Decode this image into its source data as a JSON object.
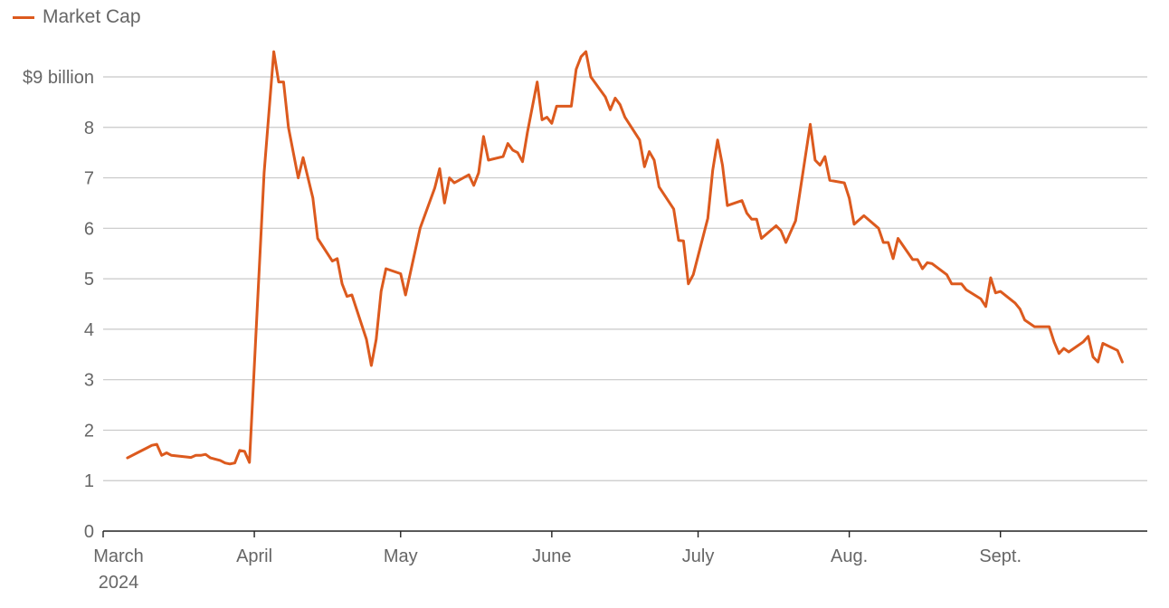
{
  "chart_data": {
    "type": "line",
    "title": "",
    "xlabel": "",
    "ylabel": "",
    "ylim": [
      0,
      9
    ],
    "grid": true,
    "legend_placement": "top-left",
    "accent_color": "#dc5a1e",
    "y_ticks": [
      {
        "value": 9,
        "label": "$9 billion"
      },
      {
        "value": 8,
        "label": "8"
      },
      {
        "value": 7,
        "label": "7"
      },
      {
        "value": 6,
        "label": "6"
      },
      {
        "value": 5,
        "label": "5"
      },
      {
        "value": 4,
        "label": "4"
      },
      {
        "value": 3,
        "label": "3"
      },
      {
        "value": 2,
        "label": "2"
      },
      {
        "value": 1,
        "label": "1"
      },
      {
        "value": 0,
        "label": "0"
      }
    ],
    "x_ticks": [
      {
        "date": "2024-03-01",
        "label": "March",
        "sublabel": "2024"
      },
      {
        "date": "2024-04-01",
        "label": "April"
      },
      {
        "date": "2024-05-01",
        "label": "May"
      },
      {
        "date": "2024-06-01",
        "label": "June"
      },
      {
        "date": "2024-07-01",
        "label": "July"
      },
      {
        "date": "2024-08-01",
        "label": "Aug."
      },
      {
        "date": "2024-09-01",
        "label": "Sept."
      }
    ],
    "x_range": [
      "2024-03-01",
      "2024-09-30"
    ],
    "series": [
      {
        "name": "Market Cap",
        "color": "#dc5a1e",
        "points": [
          [
            "2024-03-06",
            1.45
          ],
          [
            "2024-03-08",
            1.55
          ],
          [
            "2024-03-10",
            1.65
          ],
          [
            "2024-03-11",
            1.7
          ],
          [
            "2024-03-12",
            1.72
          ],
          [
            "2024-03-13",
            1.5
          ],
          [
            "2024-03-14",
            1.55
          ],
          [
            "2024-03-15",
            1.5
          ],
          [
            "2024-03-18",
            1.47
          ],
          [
            "2024-03-19",
            1.46
          ],
          [
            "2024-03-20",
            1.5
          ],
          [
            "2024-03-21",
            1.5
          ],
          [
            "2024-03-22",
            1.52
          ],
          [
            "2024-03-23",
            1.45
          ],
          [
            "2024-03-25",
            1.4
          ],
          [
            "2024-03-26",
            1.35
          ],
          [
            "2024-03-27",
            1.33
          ],
          [
            "2024-03-28",
            1.35
          ],
          [
            "2024-03-29",
            1.6
          ],
          [
            "2024-03-30",
            1.58
          ],
          [
            "2024-03-31",
            1.36
          ],
          [
            "2024-04-03",
            7.1
          ],
          [
            "2024-04-05",
            9.5
          ],
          [
            "2024-04-06",
            8.9
          ],
          [
            "2024-04-07",
            8.9
          ],
          [
            "2024-04-08",
            8.0
          ],
          [
            "2024-04-10",
            7.0
          ],
          [
            "2024-04-11",
            7.4
          ],
          [
            "2024-04-13",
            6.6
          ],
          [
            "2024-04-14",
            5.8
          ],
          [
            "2024-04-17",
            5.35
          ],
          [
            "2024-04-18",
            5.4
          ],
          [
            "2024-04-19",
            4.9
          ],
          [
            "2024-04-20",
            4.65
          ],
          [
            "2024-04-21",
            4.68
          ],
          [
            "2024-04-24",
            3.8
          ],
          [
            "2024-04-25",
            3.28
          ],
          [
            "2024-04-26",
            3.8
          ],
          [
            "2024-04-27",
            4.75
          ],
          [
            "2024-04-28",
            5.2
          ],
          [
            "2024-05-01",
            5.1
          ],
          [
            "2024-05-02",
            4.68
          ],
          [
            "2024-05-05",
            6.0
          ],
          [
            "2024-05-08",
            6.8
          ],
          [
            "2024-05-09",
            7.18
          ],
          [
            "2024-05-10",
            6.5
          ],
          [
            "2024-05-11",
            7.0
          ],
          [
            "2024-05-12",
            6.9
          ],
          [
            "2024-05-15",
            7.06
          ],
          [
            "2024-05-16",
            6.85
          ],
          [
            "2024-05-17",
            7.1
          ],
          [
            "2024-05-18",
            7.82
          ],
          [
            "2024-05-19",
            7.35
          ],
          [
            "2024-05-22",
            7.42
          ],
          [
            "2024-05-23",
            7.68
          ],
          [
            "2024-05-24",
            7.55
          ],
          [
            "2024-05-25",
            7.5
          ],
          [
            "2024-05-26",
            7.32
          ],
          [
            "2024-05-27",
            7.9
          ],
          [
            "2024-05-29",
            8.9
          ],
          [
            "2024-05-30",
            8.15
          ],
          [
            "2024-05-31",
            8.2
          ],
          [
            "2024-06-01",
            8.08
          ],
          [
            "2024-06-02",
            8.42
          ],
          [
            "2024-06-05",
            8.42
          ],
          [
            "2024-06-06",
            9.15
          ],
          [
            "2024-06-07",
            9.4
          ],
          [
            "2024-06-08",
            9.5
          ],
          [
            "2024-06-09",
            9.0
          ],
          [
            "2024-06-12",
            8.6
          ],
          [
            "2024-06-13",
            8.35
          ],
          [
            "2024-06-14",
            8.58
          ],
          [
            "2024-06-15",
            8.45
          ],
          [
            "2024-06-16",
            8.2
          ],
          [
            "2024-06-19",
            7.75
          ],
          [
            "2024-06-20",
            7.22
          ],
          [
            "2024-06-21",
            7.52
          ],
          [
            "2024-06-22",
            7.35
          ],
          [
            "2024-06-23",
            6.82
          ],
          [
            "2024-06-26",
            6.38
          ],
          [
            "2024-06-27",
            5.76
          ],
          [
            "2024-06-28",
            5.75
          ],
          [
            "2024-06-29",
            4.9
          ],
          [
            "2024-06-30",
            5.08
          ],
          [
            "2024-07-03",
            6.2
          ],
          [
            "2024-07-04",
            7.15
          ],
          [
            "2024-07-05",
            7.75
          ],
          [
            "2024-07-06",
            7.25
          ],
          [
            "2024-07-07",
            6.45
          ],
          [
            "2024-07-10",
            6.55
          ],
          [
            "2024-07-11",
            6.3
          ],
          [
            "2024-07-12",
            6.18
          ],
          [
            "2024-07-13",
            6.18
          ],
          [
            "2024-07-14",
            5.8
          ],
          [
            "2024-07-17",
            6.05
          ],
          [
            "2024-07-18",
            5.95
          ],
          [
            "2024-07-19",
            5.72
          ],
          [
            "2024-07-21",
            6.15
          ],
          [
            "2024-07-24",
            8.06
          ],
          [
            "2024-07-25",
            7.35
          ],
          [
            "2024-07-26",
            7.25
          ],
          [
            "2024-07-27",
            7.42
          ],
          [
            "2024-07-28",
            6.95
          ],
          [
            "2024-07-31",
            6.9
          ],
          [
            "2024-08-01",
            6.6
          ],
          [
            "2024-08-02",
            6.08
          ],
          [
            "2024-08-04",
            6.25
          ],
          [
            "2024-08-07",
            6.0
          ],
          [
            "2024-08-08",
            5.72
          ],
          [
            "2024-08-09",
            5.72
          ],
          [
            "2024-08-10",
            5.4
          ],
          [
            "2024-08-11",
            5.8
          ],
          [
            "2024-08-14",
            5.38
          ],
          [
            "2024-08-15",
            5.38
          ],
          [
            "2024-08-16",
            5.2
          ],
          [
            "2024-08-17",
            5.32
          ],
          [
            "2024-08-18",
            5.3
          ],
          [
            "2024-08-21",
            5.08
          ],
          [
            "2024-08-22",
            4.9
          ],
          [
            "2024-08-24",
            4.9
          ],
          [
            "2024-08-25",
            4.78
          ],
          [
            "2024-08-28",
            4.6
          ],
          [
            "2024-08-29",
            4.45
          ],
          [
            "2024-08-30",
            5.02
          ],
          [
            "2024-08-31",
            4.72
          ],
          [
            "2024-09-01",
            4.75
          ],
          [
            "2024-09-04",
            4.52
          ],
          [
            "2024-09-05",
            4.4
          ],
          [
            "2024-09-06",
            4.18
          ],
          [
            "2024-09-08",
            4.05
          ],
          [
            "2024-09-11",
            4.05
          ],
          [
            "2024-09-12",
            3.75
          ],
          [
            "2024-09-13",
            3.52
          ],
          [
            "2024-09-14",
            3.62
          ],
          [
            "2024-09-15",
            3.55
          ],
          [
            "2024-09-18",
            3.75
          ],
          [
            "2024-09-19",
            3.86
          ],
          [
            "2024-09-20",
            3.45
          ],
          [
            "2024-09-21",
            3.35
          ],
          [
            "2024-09-22",
            3.72
          ],
          [
            "2024-09-25",
            3.58
          ],
          [
            "2024-09-26",
            3.35
          ]
        ]
      }
    ]
  }
}
